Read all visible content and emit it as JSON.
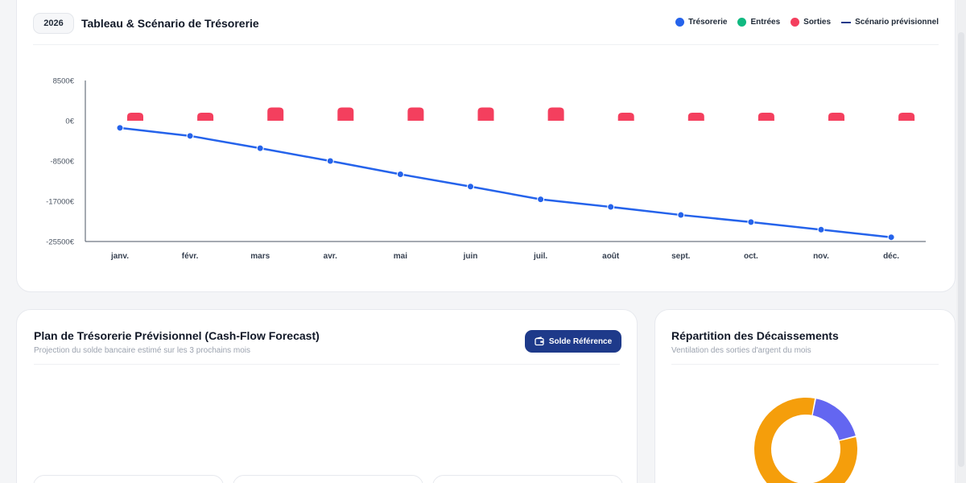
{
  "header": {
    "year": "2026",
    "title": "Tableau & Scénario de Trésorerie"
  },
  "legend": [
    {
      "label": "Trésorerie",
      "color": "#2563eb",
      "marker": "dot"
    },
    {
      "label": "Entrées",
      "color": "#10b981",
      "marker": "dot"
    },
    {
      "label": "Sorties",
      "color": "#f43f5e",
      "marker": "dot"
    },
    {
      "label": "Scénario prévisionnel",
      "color": "#1e3a8a",
      "marker": "dash"
    }
  ],
  "chart_data": {
    "type": "bar+line",
    "categories": [
      "janv.",
      "févr.",
      "mars",
      "avr.",
      "mai",
      "juin",
      "juil.",
      "août",
      "sept.",
      "oct.",
      "nov.",
      "déc."
    ],
    "y_ticks": [
      "8500€",
      "0€",
      "-8500€",
      "-17000€",
      "-25500€"
    ],
    "ylim": [
      -25500,
      8500
    ],
    "series": [
      {
        "name": "Trésorerie",
        "type": "line",
        "color": "#2563eb",
        "values": [
          -1500,
          -3200,
          -5800,
          -8500,
          -11300,
          -13900,
          -16600,
          -18200,
          -19900,
          -21400,
          -23000,
          -24600
        ]
      },
      {
        "name": "Entrées",
        "type": "bar",
        "color": "#10b981",
        "values": [
          0,
          0,
          0,
          0,
          0,
          0,
          0,
          0,
          0,
          0,
          0,
          0
        ]
      },
      {
        "name": "Sorties",
        "type": "bar",
        "color": "#f43f5e",
        "values": [
          1700,
          1700,
          2800,
          2800,
          2800,
          2800,
          2800,
          1700,
          1700,
          1700,
          1700,
          1700
        ]
      }
    ]
  },
  "plan": {
    "title": "Plan de Trésorerie Prévisionnel (Cash-Flow Forecast)",
    "subtitle": "Projection du solde bancaire estimé sur les 3 prochains mois",
    "button_label": "Solde Référence",
    "button_icon": "wallet-icon"
  },
  "donut": {
    "title": "Répartition des Décaissements",
    "subtitle": "Ventilation des sorties d'argent du mois",
    "slices": [
      {
        "value": 82,
        "color": "#f59e0b"
      },
      {
        "value": 18,
        "color": "#6366f1"
      }
    ]
  }
}
